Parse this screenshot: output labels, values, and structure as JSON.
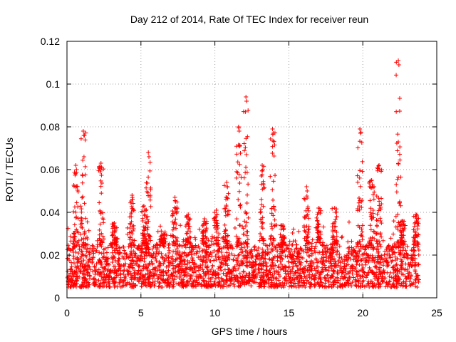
{
  "chart_data": {
    "type": "scatter",
    "title": "Day 212 of 2014, Rate Of TEC Index for receiver reun",
    "xlabel": "GPS time / hours",
    "ylabel": "ROTI / TECUs",
    "xlim": [
      0,
      25
    ],
    "ylim": [
      0,
      0.12
    ],
    "xticks": [
      0,
      5,
      10,
      15,
      20,
      25
    ],
    "xtick_labels": [
      "0",
      "5",
      "10",
      "15",
      "20",
      "25"
    ],
    "yticks": [
      0,
      0.02,
      0.04,
      0.06,
      0.08,
      0.1,
      0.12
    ],
    "ytick_labels": [
      "0",
      "0.02",
      "0.04",
      "0.06",
      "0.08",
      "0.1",
      "0.12"
    ],
    "grid": true,
    "marker": "plus",
    "color": "#ff0000",
    "series": [
      {
        "name": "ROTI",
        "x_range": [
          0,
          23.8
        ],
        "baseline_band": [
          0.005,
          0.025
        ],
        "spikes": [
          {
            "x": 0.6,
            "peak": 0.062
          },
          {
            "x": 1.1,
            "peak": 0.078
          },
          {
            "x": 2.3,
            "peak": 0.063
          },
          {
            "x": 3.2,
            "peak": 0.035
          },
          {
            "x": 4.4,
            "peak": 0.048
          },
          {
            "x": 5.2,
            "peak": 0.043
          },
          {
            "x": 5.5,
            "peak": 0.068
          },
          {
            "x": 6.5,
            "peak": 0.03
          },
          {
            "x": 7.3,
            "peak": 0.047
          },
          {
            "x": 8.2,
            "peak": 0.039
          },
          {
            "x": 9.3,
            "peak": 0.037
          },
          {
            "x": 10.1,
            "peak": 0.041
          },
          {
            "x": 10.8,
            "peak": 0.054
          },
          {
            "x": 11.6,
            "peak": 0.08
          },
          {
            "x": 12.1,
            "peak": 0.094
          },
          {
            "x": 13.2,
            "peak": 0.062
          },
          {
            "x": 13.9,
            "peak": 0.079
          },
          {
            "x": 14.6,
            "peak": 0.034
          },
          {
            "x": 16.2,
            "peak": 0.052
          },
          {
            "x": 17.0,
            "peak": 0.042
          },
          {
            "x": 18.1,
            "peak": 0.042
          },
          {
            "x": 19.8,
            "peak": 0.079
          },
          {
            "x": 20.6,
            "peak": 0.055
          },
          {
            "x": 21.1,
            "peak": 0.062
          },
          {
            "x": 22.4,
            "peak": 0.111
          },
          {
            "x": 22.7,
            "peak": 0.036
          },
          {
            "x": 23.6,
            "peak": 0.039
          }
        ]
      }
    ]
  }
}
